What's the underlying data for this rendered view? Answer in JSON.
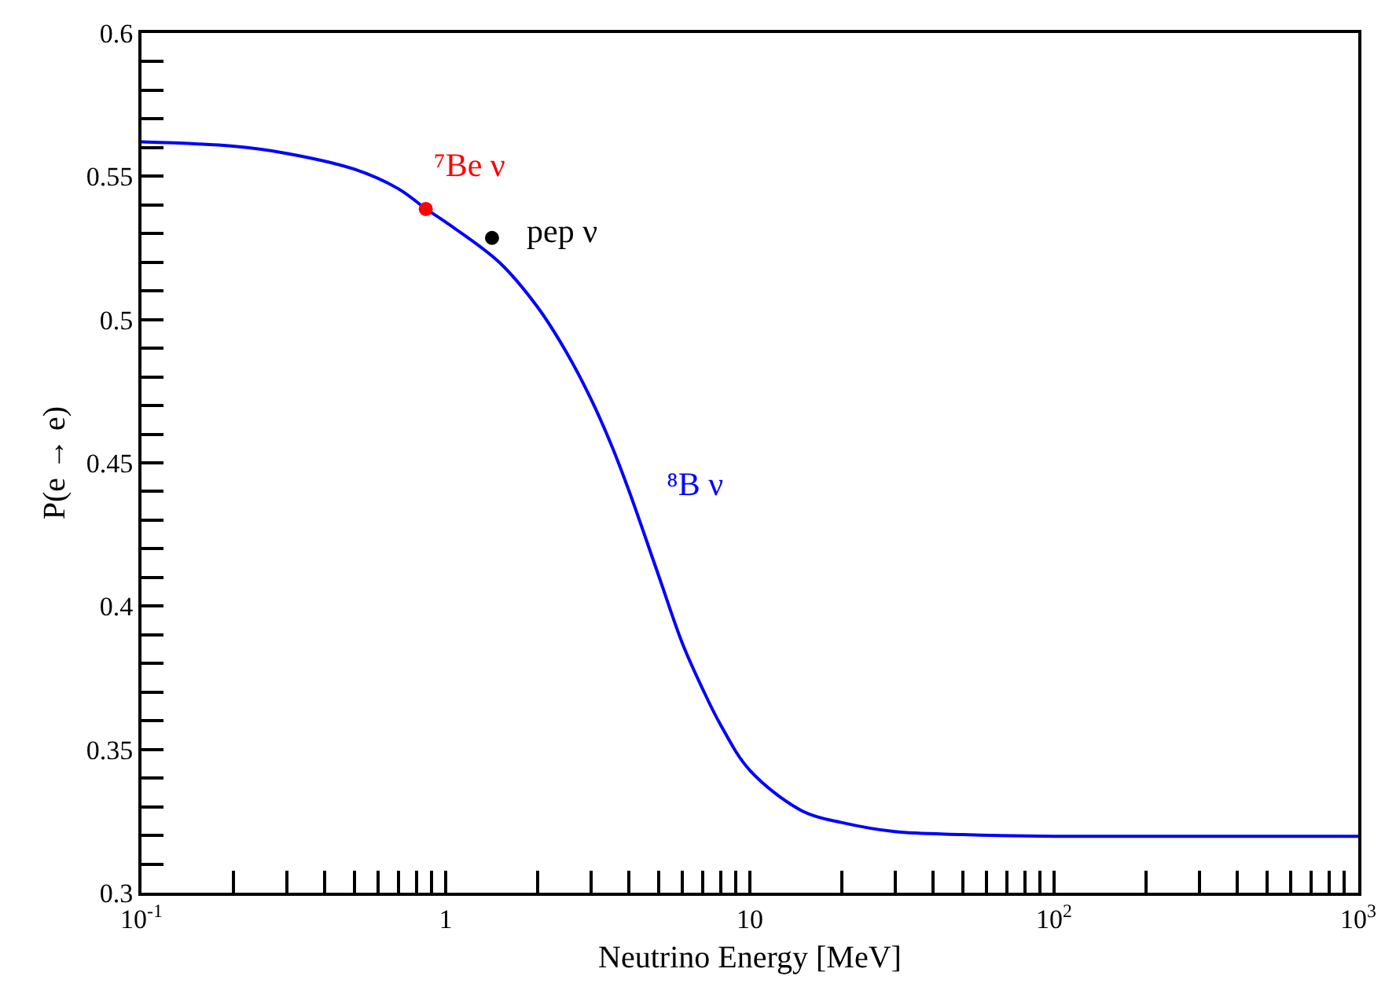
{
  "chart_data": {
    "type": "line",
    "ylabel": "P(e → e)",
    "xlabel": "Neutrino Energy [MeV]",
    "log": "x",
    "legend": false,
    "xlim": [
      0.1,
      1000
    ],
    "xticks": [
      {
        "value": 0.1,
        "label": "10$^{-1}$"
      },
      1,
      10,
      {
        "value": 100,
        "label": "10$^{2}$"
      },
      {
        "value": 1000,
        "label": "10$^{3}$"
      },
      {
        "value": 0.2,
        "label": null
      },
      {
        "value": 0.3,
        "label": null
      },
      {
        "value": 0.4,
        "label": null
      },
      {
        "value": 0.5,
        "label": null
      },
      {
        "value": 0.6,
        "label": null
      },
      {
        "value": 0.7,
        "label": null
      },
      {
        "value": 0.8,
        "label": null
      },
      {
        "value": 0.9,
        "label": null
      },
      {
        "value": 2,
        "label": null
      },
      {
        "value": 3,
        "label": null
      },
      {
        "value": 4,
        "label": null
      },
      {
        "value": 5,
        "label": null
      },
      {
        "value": 6,
        "label": null
      },
      {
        "value": 7,
        "label": null
      },
      {
        "value": 8,
        "label": null
      },
      {
        "value": 9,
        "label": null
      },
      {
        "value": 20,
        "label": null
      },
      {
        "value": 30,
        "label": null
      },
      {
        "value": 40,
        "label": null
      },
      {
        "value": 50,
        "label": null
      },
      {
        "value": 60,
        "label": null
      },
      {
        "value": 70,
        "label": null
      },
      {
        "value": 80,
        "label": null
      },
      {
        "value": 90,
        "label": null
      },
      {
        "value": 200,
        "label": null
      },
      {
        "value": 300,
        "label": null
      },
      {
        "value": 400,
        "label": null
      },
      {
        "value": 500,
        "label": null
      },
      {
        "value": 600,
        "label": null
      },
      {
        "value": 700,
        "label": null
      },
      {
        "value": 800,
        "label": null
      },
      {
        "value": 900,
        "label": null
      }
    ],
    "ylim": [
      0.3,
      0.6
    ],
    "yticks": [
      0.3,
      0.35,
      0.4,
      0.45,
      0.5,
      0.55,
      0.6,
      {
        "value": 0.31,
        "label": null
      },
      {
        "value": 0.32,
        "label": null
      },
      {
        "value": 0.33,
        "label": null
      },
      {
        "value": 0.34,
        "label": null
      },
      {
        "value": 0.36,
        "label": null
      },
      {
        "value": 0.37,
        "label": null
      },
      {
        "value": 0.38,
        "label": null
      },
      {
        "value": 0.39,
        "label": null
      },
      {
        "value": 0.41,
        "label": null
      },
      {
        "value": 0.42,
        "label": null
      },
      {
        "value": 0.43,
        "label": null
      },
      {
        "value": 0.44,
        "label": null
      },
      {
        "value": 0.46,
        "label": null
      },
      {
        "value": 0.47,
        "label": null
      },
      {
        "value": 0.48,
        "label": null
      },
      {
        "value": 0.49,
        "label": null
      },
      {
        "value": 0.51,
        "label": null
      },
      {
        "value": 0.52,
        "label": null
      },
      {
        "value": 0.53,
        "label": null
      },
      {
        "value": 0.54,
        "label": null
      },
      {
        "value": 0.56,
        "label": null
      },
      {
        "value": 0.57,
        "label": null
      },
      {
        "value": 0.58,
        "label": null
      },
      {
        "value": 0.59,
        "label": null
      }
    ],
    "series": [
      {
        "name": "⁸B ν",
        "color": "#0000ff",
        "marker": "none",
        "line_style": "solid",
        "x": [
          0.1,
          0.2,
          0.3,
          0.5,
          0.7,
          0.862,
          1,
          1.5,
          2,
          2.5,
          3,
          3.5,
          4,
          5,
          6,
          7,
          8,
          10,
          15,
          20,
          30,
          50,
          100,
          1000
        ],
        "values": [
          0.562,
          0.5605,
          0.558,
          0.5525,
          0.5456,
          0.5386,
          0.534,
          0.52,
          0.5045,
          0.4884,
          0.4724,
          0.4564,
          0.4404,
          0.411,
          0.387,
          0.371,
          0.3587,
          0.3427,
          0.3283,
          0.3245,
          0.3213,
          0.3203,
          0.3197,
          0.3197
        ]
      },
      {
        "name": "⁷Be ν",
        "type": "scatter",
        "color": "#ff0000",
        "marker": "circle",
        "x": [
          0.86
        ],
        "values": [
          0.5386
        ]
      },
      {
        "name": "pep ν",
        "type": "scatter",
        "color": "#000000",
        "marker": "circle",
        "x": [
          1.42
        ],
        "values": [
          0.5285
        ]
      }
    ]
  }
}
